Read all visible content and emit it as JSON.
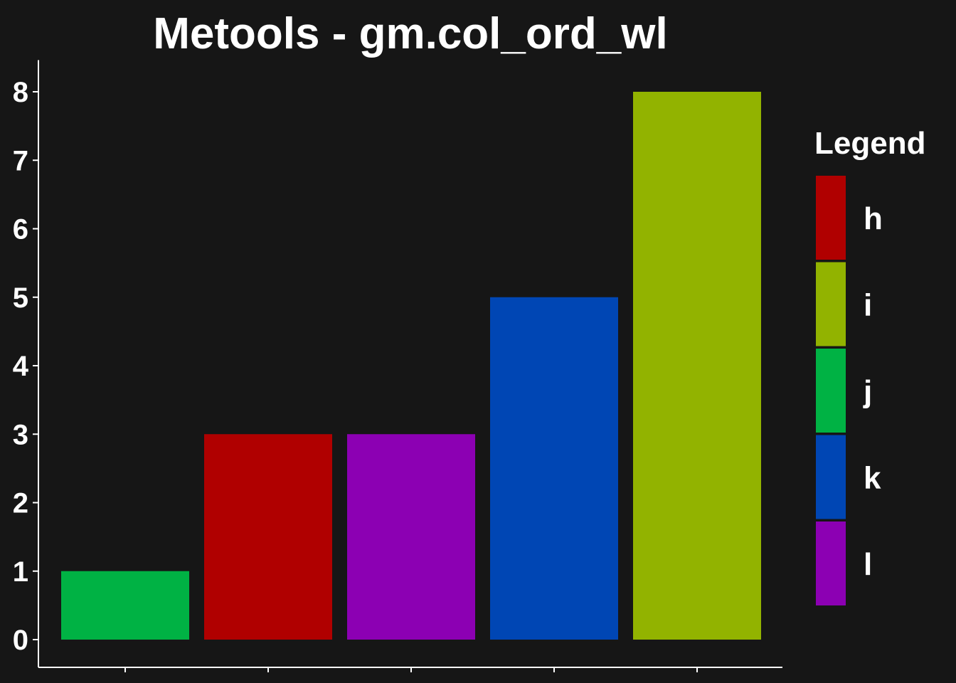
{
  "chart_data": {
    "type": "bar",
    "title": "Metools - gm.col_ord_wl",
    "xlabel": "",
    "ylabel": "",
    "ylim": [
      0,
      8.4
    ],
    "yticks": [
      0,
      1,
      2,
      3,
      4,
      5,
      6,
      7,
      8
    ],
    "bars": [
      {
        "series": "j",
        "value": 1
      },
      {
        "series": "h",
        "value": 3
      },
      {
        "series": "l",
        "value": 3
      },
      {
        "series": "k",
        "value": 5
      },
      {
        "series": "i",
        "value": 8
      }
    ],
    "legend": {
      "title": "Legend",
      "placement": "right",
      "entries": [
        {
          "name": "h",
          "color": "#b00000"
        },
        {
          "name": "i",
          "color": "#92b300"
        },
        {
          "name": "j",
          "color": "#00b244"
        },
        {
          "name": "k",
          "color": "#0046b4"
        },
        {
          "name": "l",
          "color": "#8c00b3"
        }
      ]
    },
    "background": "#161616",
    "axis_color": "#ffffff",
    "grid": false
  }
}
